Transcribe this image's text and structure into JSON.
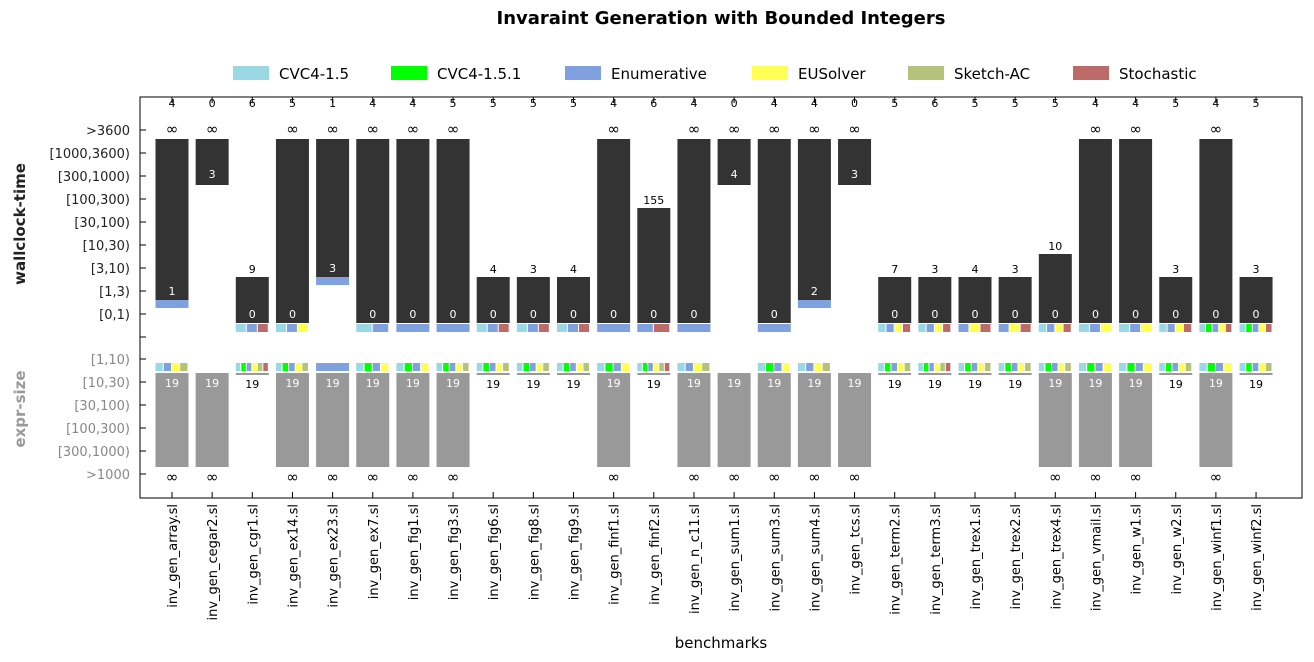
{
  "chart_data": {
    "type": "bar",
    "title": "Invaraint Generation with Bounded Integers",
    "xlabel": "benchmarks",
    "ylabel_top": "wallclock-time",
    "ylabel_bottom": "expr-size",
    "legend": [
      {
        "name": "CVC4-1.5",
        "color": "#99d8e4"
      },
      {
        "name": "CVC4-1.5.1",
        "color": "#00ff00"
      },
      {
        "name": "Enumerative",
        "color": "#7fa1e0"
      },
      {
        "name": "EUSolver",
        "color": "#ffff55"
      },
      {
        "name": "Sketch-AC",
        "color": "#b4c27b"
      },
      {
        "name": "Stochastic",
        "color": "#bd6b68"
      }
    ],
    "time_bins": [
      "[0,1)",
      "[1,3)",
      "[3,10)",
      "[10,30)",
      "[30,100)",
      "[100,300)",
      "[300,1000)",
      "[1000,3600)",
      ">3600"
    ],
    "size_bins": [
      "[1,10)",
      "[10,30)",
      "[30,100)",
      "[100,300)",
      "[300,1000)",
      ">1000"
    ],
    "infinity_symbol": "∞",
    "categories": [
      "inv_gen_array.sl",
      "inv_gen_cegar2.sl",
      "inv_gen_cgr1.sl",
      "inv_gen_ex14.sl",
      "inv_gen_ex23.sl",
      "inv_gen_ex7.sl",
      "inv_gen_fig1.sl",
      "inv_gen_fig3.sl",
      "inv_gen_fig6.sl",
      "inv_gen_fig8.sl",
      "inv_gen_fig9.sl",
      "inv_gen_finf1.sl",
      "inv_gen_finf2.sl",
      "inv_gen_n_c11.sl",
      "inv_gen_sum1.sl",
      "inv_gen_sum3.sl",
      "inv_gen_sum4.sl",
      "inv_gen_tcs.sl",
      "inv_gen_term2.sl",
      "inv_gen_term3.sl",
      "inv_gen_trex1.sl",
      "inv_gen_trex2.sl",
      "inv_gen_trex4.sl",
      "inv_gen_vmail.sl",
      "inv_gen_w1.sl",
      "inv_gen_w2.sl",
      "inv_gen_winf1.sl",
      "inv_gen_winf2.sl"
    ],
    "solved_counts": [
      "4",
      "0",
      "6",
      "5",
      "1",
      "4",
      "4",
      "5",
      "5",
      "5",
      "5",
      "4",
      "6",
      "4",
      "0",
      "4",
      "4",
      "0",
      "5",
      "6",
      "5",
      "5",
      "5",
      "4",
      "4",
      "5",
      "4",
      "5"
    ],
    "time_min_labels": [
      "1",
      "",
      "0",
      "0",
      "3",
      "0",
      "0",
      "0",
      "0",
      "0",
      "0",
      "0",
      "0",
      "0",
      "",
      "0",
      "2",
      "",
      "0",
      "0",
      "0",
      "0",
      "0",
      "0",
      "0",
      "0",
      "0",
      "0"
    ],
    "time_max_labels": [
      "∞",
      "∞",
      "9",
      "∞",
      "∞",
      "∞",
      "∞",
      "∞",
      "4",
      "3",
      "4",
      "∞",
      "155",
      "∞",
      "∞",
      "∞",
      "∞",
      "∞",
      "7",
      "3",
      "4",
      "3",
      "10",
      "∞",
      "∞",
      "3",
      "∞",
      "3"
    ],
    "extra_time_labels": {
      "1": "3",
      "14": "4",
      "17": "3"
    },
    "time_min_bin": [
      1,
      6,
      0,
      0,
      2,
      0,
      0,
      0,
      0,
      0,
      0,
      0,
      0,
      0,
      6,
      0,
      1,
      6,
      0,
      0,
      0,
      0,
      0,
      0,
      0,
      0,
      0,
      0
    ],
    "time_max_bin": [
      8,
      8,
      2,
      8,
      8,
      8,
      8,
      8,
      2,
      2,
      2,
      8,
      5,
      8,
      8,
      8,
      8,
      8,
      2,
      2,
      2,
      2,
      3,
      8,
      8,
      2,
      8,
      2
    ],
    "size_label": "19",
    "size_max_infinite": [
      true,
      true,
      false,
      true,
      true,
      true,
      true,
      true,
      false,
      false,
      false,
      true,
      false,
      true,
      true,
      true,
      true,
      true,
      false,
      false,
      false,
      false,
      true,
      true,
      true,
      false,
      true,
      false
    ],
    "time_min_winners": [
      [
        2
      ],
      [],
      [
        0,
        2,
        5
      ],
      [
        0,
        2,
        3
      ],
      [
        2
      ],
      [
        0,
        2
      ],
      [
        2
      ],
      [
        2
      ],
      [
        0,
        2,
        5
      ],
      [
        0,
        2,
        5
      ],
      [
        0,
        2,
        5
      ],
      [
        2
      ],
      [
        2,
        5
      ],
      [
        2
      ],
      [],
      [
        2
      ],
      [
        2
      ],
      [],
      [
        0,
        2,
        3,
        5
      ],
      [
        0,
        2,
        3,
        5
      ],
      [
        2,
        3,
        5
      ],
      [
        2,
        3,
        5
      ],
      [
        0,
        2,
        3,
        5
      ],
      [
        0,
        2,
        3
      ],
      [
        0,
        2,
        3
      ],
      [
        0,
        2,
        3,
        5
      ],
      [
        0,
        1,
        2,
        3,
        5
      ],
      [
        0,
        1,
        2,
        3,
        5
      ]
    ],
    "size_min_solvers": [
      [
        0,
        2,
        3,
        4
      ],
      [],
      [
        0,
        1,
        2,
        3,
        4,
        5
      ],
      [
        0,
        1,
        2,
        3,
        4
      ],
      [
        2
      ],
      [
        0,
        1,
        2,
        3
      ],
      [
        0,
        1,
        2,
        3
      ],
      [
        0,
        1,
        2,
        3,
        4
      ],
      [
        0,
        1,
        2,
        3,
        4
      ],
      [
        0,
        1,
        2,
        3,
        4
      ],
      [
        0,
        1,
        2,
        3,
        4
      ],
      [
        0,
        1,
        2,
        3
      ],
      [
        0,
        1,
        2,
        3,
        4,
        5
      ],
      [
        0,
        2,
        3,
        4
      ],
      [],
      [
        0,
        1,
        2,
        3
      ],
      [
        0,
        2,
        3,
        4
      ],
      [],
      [
        0,
        1,
        2,
        3,
        4
      ],
      [
        0,
        1,
        2,
        3,
        4,
        5
      ],
      [
        0,
        1,
        2,
        3,
        4
      ],
      [
        0,
        1,
        2,
        3,
        4
      ],
      [
        0,
        1,
        2,
        3,
        4
      ],
      [
        0,
        1,
        2,
        3
      ],
      [
        0,
        1,
        2,
        3
      ],
      [
        0,
        1,
        2,
        3,
        4
      ],
      [
        0,
        1,
        2,
        3
      ],
      [
        0,
        1,
        2,
        3,
        4
      ]
    ]
  }
}
